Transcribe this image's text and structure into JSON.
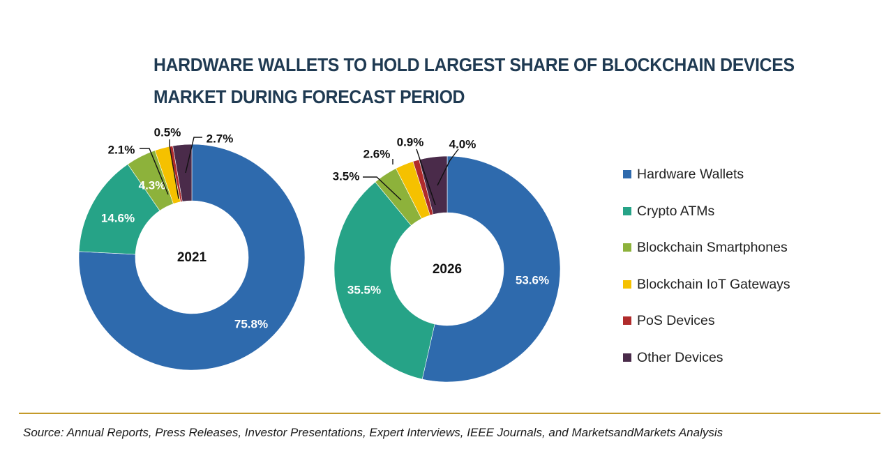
{
  "title_lines": [
    "HARDWARE WALLETS TO HOLD LARGEST SHARE OF BLOCKCHAIN DEVICES",
    "MARKET DURING FORECAST PERIOD"
  ],
  "colors": {
    "title": "#1f3a52",
    "divider": "#c49a2a"
  },
  "legend": [
    {
      "label": "Hardware Wallets",
      "color": "#2e6aad"
    },
    {
      "label": "Crypto ATMs",
      "color": "#26a387"
    },
    {
      "label": "Blockchain Smartphones",
      "color": "#8db23b"
    },
    {
      "label": "Blockchain IoT Gateways",
      "color": "#f5c100"
    },
    {
      "label": "PoS Devices",
      "color": "#b02b2b"
    },
    {
      "label": "Other Devices",
      "color": "#4a2b4a"
    }
  ],
  "source": "Source: Annual Reports, Press Releases, Investor Presentations, Expert Interviews, IEEE Journals, and MarketsandMarkets Analysis",
  "chart_data": [
    {
      "type": "pie",
      "variant": "donut",
      "center_label": "2021",
      "categories": [
        "Hardware Wallets",
        "Crypto ATMs",
        "Blockchain Smartphones",
        "Blockchain IoT Gateways",
        "PoS Devices",
        "Other Devices"
      ],
      "values": [
        75.8,
        14.6,
        4.3,
        2.1,
        0.5,
        2.7
      ],
      "value_labels": [
        "75.8%",
        "14.6%",
        "4.3%",
        "2.1%",
        "0.5%",
        "2.7%"
      ],
      "unit": "%"
    },
    {
      "type": "pie",
      "variant": "donut",
      "center_label": "2026",
      "categories": [
        "Hardware Wallets",
        "Crypto ATMs",
        "Blockchain Smartphones",
        "Blockchain IoT Gateways",
        "PoS Devices",
        "Other Devices"
      ],
      "values": [
        53.6,
        35.5,
        3.5,
        2.6,
        0.9,
        4.0
      ],
      "value_labels": [
        "53.6%",
        "35.5%",
        "3.5%",
        "2.6%",
        "0.9%",
        "4.0%"
      ],
      "unit": "%"
    }
  ]
}
